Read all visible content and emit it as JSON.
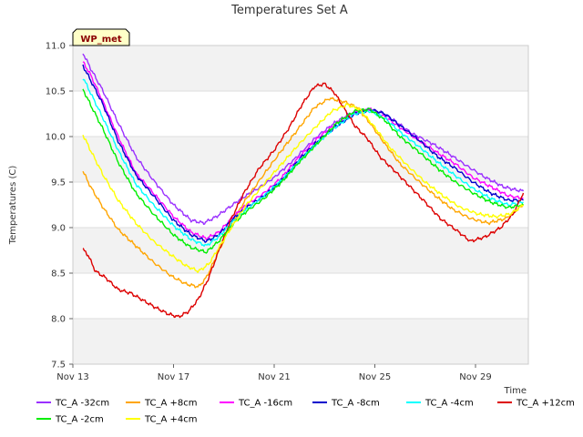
{
  "chart_data": {
    "type": "line",
    "title": "Temperatures Set A",
    "xlabel": "Time",
    "ylabel": "Temperatures (C)",
    "badge": "WP_met",
    "xlim": [
      13,
      31.1
    ],
    "ylim": [
      7.5,
      11.0
    ],
    "xticks": [
      {
        "value": 13,
        "label": "Nov 13"
      },
      {
        "value": 17,
        "label": "Nov 17"
      },
      {
        "value": 21,
        "label": "Nov 21"
      },
      {
        "value": 25,
        "label": "Nov 25"
      },
      {
        "value": 29,
        "label": "Nov 29"
      }
    ],
    "yticks": [
      7.5,
      8.0,
      8.5,
      9.0,
      9.5,
      10.0,
      10.5,
      11.0
    ],
    "grid": true,
    "legend_position": "bottom",
    "series": [
      {
        "name": "TC_A -32cm",
        "color": "#9b30ff",
        "points": [
          [
            13.4,
            10.92
          ],
          [
            13.7,
            10.75
          ],
          [
            14.2,
            10.5
          ],
          [
            14.8,
            10.15
          ],
          [
            15.5,
            9.78
          ],
          [
            16.2,
            9.52
          ],
          [
            17.0,
            9.25
          ],
          [
            17.7,
            9.08
          ],
          [
            18.2,
            9.05
          ],
          [
            18.7,
            9.12
          ],
          [
            19.2,
            9.22
          ],
          [
            19.7,
            9.32
          ],
          [
            20.3,
            9.42
          ],
          [
            21.0,
            9.55
          ],
          [
            21.8,
            9.75
          ],
          [
            22.7,
            10.0
          ],
          [
            23.4,
            10.15
          ],
          [
            24.0,
            10.25
          ],
          [
            24.6,
            10.3
          ],
          [
            25.2,
            10.27
          ],
          [
            25.8,
            10.17
          ],
          [
            26.5,
            10.03
          ],
          [
            27.3,
            9.92
          ],
          [
            28.0,
            9.8
          ],
          [
            28.7,
            9.67
          ],
          [
            29.4,
            9.55
          ],
          [
            30.1,
            9.45
          ],
          [
            30.5,
            9.42
          ],
          [
            30.9,
            9.4
          ]
        ]
      },
      {
        "name": "TC_A +8cm",
        "color": "#ffa500",
        "points": [
          [
            13.4,
            9.62
          ],
          [
            13.7,
            9.45
          ],
          [
            14.2,
            9.22
          ],
          [
            14.8,
            8.98
          ],
          [
            15.5,
            8.8
          ],
          [
            16.2,
            8.62
          ],
          [
            16.9,
            8.47
          ],
          [
            17.5,
            8.38
          ],
          [
            18.0,
            8.35
          ],
          [
            18.3,
            8.45
          ],
          [
            18.7,
            8.68
          ],
          [
            19.2,
            8.98
          ],
          [
            19.8,
            9.28
          ],
          [
            20.5,
            9.55
          ],
          [
            21.3,
            9.85
          ],
          [
            22.0,
            10.1
          ],
          [
            22.6,
            10.32
          ],
          [
            23.2,
            10.42
          ],
          [
            23.8,
            10.38
          ],
          [
            24.3,
            10.32
          ],
          [
            24.8,
            10.15
          ],
          [
            25.4,
            9.92
          ],
          [
            26.0,
            9.7
          ],
          [
            26.7,
            9.52
          ],
          [
            27.4,
            9.35
          ],
          [
            28.1,
            9.2
          ],
          [
            28.8,
            9.1
          ],
          [
            29.5,
            9.05
          ],
          [
            30.2,
            9.1
          ],
          [
            30.9,
            9.25
          ]
        ]
      },
      {
        "name": "TC_A -16cm",
        "color": "#ff00ff",
        "points": [
          [
            13.4,
            10.82
          ],
          [
            13.7,
            10.68
          ],
          [
            14.2,
            10.38
          ],
          [
            14.8,
            10.0
          ],
          [
            15.5,
            9.6
          ],
          [
            16.2,
            9.38
          ],
          [
            17.0,
            9.12
          ],
          [
            17.7,
            8.95
          ],
          [
            18.3,
            8.88
          ],
          [
            18.8,
            8.95
          ],
          [
            19.3,
            9.1
          ],
          [
            19.9,
            9.25
          ],
          [
            20.6,
            9.38
          ],
          [
            21.3,
            9.55
          ],
          [
            22.0,
            9.78
          ],
          [
            22.8,
            10.0
          ],
          [
            23.5,
            10.15
          ],
          [
            24.2,
            10.26
          ],
          [
            24.8,
            10.3
          ],
          [
            25.4,
            10.22
          ],
          [
            26.0,
            10.1
          ],
          [
            26.8,
            9.95
          ],
          [
            27.5,
            9.82
          ],
          [
            28.2,
            9.7
          ],
          [
            28.9,
            9.55
          ],
          [
            29.6,
            9.45
          ],
          [
            30.3,
            9.35
          ],
          [
            30.9,
            9.32
          ]
        ]
      },
      {
        "name": "TC_A -8cm",
        "color": "#0000cc",
        "points": [
          [
            13.4,
            10.78
          ],
          [
            13.7,
            10.62
          ],
          [
            14.2,
            10.35
          ],
          [
            14.8,
            9.95
          ],
          [
            15.5,
            9.58
          ],
          [
            16.2,
            9.35
          ],
          [
            17.0,
            9.08
          ],
          [
            17.7,
            8.92
          ],
          [
            18.3,
            8.85
          ],
          [
            18.8,
            8.92
          ],
          [
            19.3,
            9.08
          ],
          [
            19.9,
            9.22
          ],
          [
            20.6,
            9.35
          ],
          [
            21.3,
            9.52
          ],
          [
            22.0,
            9.75
          ],
          [
            22.8,
            9.97
          ],
          [
            23.5,
            10.12
          ],
          [
            24.2,
            10.25
          ],
          [
            24.8,
            10.3
          ],
          [
            25.4,
            10.25
          ],
          [
            26.0,
            10.12
          ],
          [
            26.8,
            9.95
          ],
          [
            27.5,
            9.78
          ],
          [
            28.2,
            9.65
          ],
          [
            28.9,
            9.5
          ],
          [
            29.6,
            9.38
          ],
          [
            30.3,
            9.3
          ],
          [
            30.9,
            9.3
          ]
        ]
      },
      {
        "name": "TC_A -4cm",
        "color": "#00ffff",
        "points": [
          [
            13.4,
            10.65
          ],
          [
            13.7,
            10.48
          ],
          [
            14.2,
            10.2
          ],
          [
            14.8,
            9.85
          ],
          [
            15.5,
            9.48
          ],
          [
            16.2,
            9.25
          ],
          [
            17.0,
            9.02
          ],
          [
            17.7,
            8.87
          ],
          [
            18.3,
            8.8
          ],
          [
            18.8,
            8.9
          ],
          [
            19.3,
            9.05
          ],
          [
            19.9,
            9.2
          ],
          [
            20.6,
            9.35
          ],
          [
            21.3,
            9.52
          ],
          [
            22.0,
            9.73
          ],
          [
            22.8,
            9.95
          ],
          [
            23.5,
            10.12
          ],
          [
            24.2,
            10.25
          ],
          [
            24.8,
            10.28
          ],
          [
            25.4,
            10.2
          ],
          [
            26.0,
            10.05
          ],
          [
            26.8,
            9.88
          ],
          [
            27.5,
            9.72
          ],
          [
            28.2,
            9.57
          ],
          [
            28.9,
            9.43
          ],
          [
            29.6,
            9.32
          ],
          [
            30.3,
            9.25
          ],
          [
            30.9,
            9.28
          ]
        ]
      },
      {
        "name": "TC_A +12cm",
        "color": "#dd0000",
        "points": [
          [
            13.4,
            8.76
          ],
          [
            13.6,
            8.7
          ],
          [
            13.9,
            8.52
          ],
          [
            14.3,
            8.45
          ],
          [
            14.8,
            8.32
          ],
          [
            15.3,
            8.28
          ],
          [
            15.8,
            8.2
          ],
          [
            16.3,
            8.12
          ],
          [
            16.8,
            8.05
          ],
          [
            17.2,
            8.02
          ],
          [
            17.6,
            8.08
          ],
          [
            18.0,
            8.22
          ],
          [
            18.4,
            8.45
          ],
          [
            18.8,
            8.75
          ],
          [
            19.3,
            9.1
          ],
          [
            19.8,
            9.38
          ],
          [
            20.4,
            9.65
          ],
          [
            21.0,
            9.85
          ],
          [
            21.6,
            10.1
          ],
          [
            22.1,
            10.35
          ],
          [
            22.6,
            10.55
          ],
          [
            23.0,
            10.58
          ],
          [
            23.4,
            10.48
          ],
          [
            23.8,
            10.3
          ],
          [
            24.2,
            10.12
          ],
          [
            24.7,
            9.98
          ],
          [
            25.2,
            9.78
          ],
          [
            25.8,
            9.62
          ],
          [
            26.4,
            9.45
          ],
          [
            27.0,
            9.28
          ],
          [
            27.6,
            9.1
          ],
          [
            28.2,
            8.98
          ],
          [
            28.8,
            8.85
          ],
          [
            29.4,
            8.9
          ],
          [
            30.0,
            9.0
          ],
          [
            30.5,
            9.15
          ],
          [
            30.9,
            9.38
          ]
        ]
      },
      {
        "name": "TC_A -2cm",
        "color": "#00ee00",
        "points": [
          [
            13.4,
            10.52
          ],
          [
            13.7,
            10.35
          ],
          [
            14.2,
            10.08
          ],
          [
            14.8,
            9.72
          ],
          [
            15.5,
            9.38
          ],
          [
            16.2,
            9.15
          ],
          [
            17.0,
            8.92
          ],
          [
            17.7,
            8.78
          ],
          [
            18.3,
            8.73
          ],
          [
            18.8,
            8.85
          ],
          [
            19.3,
            9.02
          ],
          [
            19.9,
            9.18
          ],
          [
            20.6,
            9.32
          ],
          [
            21.3,
            9.5
          ],
          [
            22.0,
            9.72
          ],
          [
            22.8,
            9.95
          ],
          [
            23.5,
            10.15
          ],
          [
            24.2,
            10.28
          ],
          [
            24.8,
            10.3
          ],
          [
            25.4,
            10.18
          ],
          [
            26.0,
            10.0
          ],
          [
            26.8,
            9.82
          ],
          [
            27.5,
            9.65
          ],
          [
            28.2,
            9.5
          ],
          [
            28.9,
            9.38
          ],
          [
            29.6,
            9.28
          ],
          [
            30.3,
            9.22
          ],
          [
            30.9,
            9.25
          ]
        ]
      },
      {
        "name": "TC_A +4cm",
        "color": "#ffff00",
        "points": [
          [
            13.4,
            10.02
          ],
          [
            13.7,
            9.85
          ],
          [
            14.2,
            9.58
          ],
          [
            14.8,
            9.3
          ],
          [
            15.5,
            9.05
          ],
          [
            16.2,
            8.85
          ],
          [
            16.9,
            8.7
          ],
          [
            17.5,
            8.58
          ],
          [
            18.0,
            8.52
          ],
          [
            18.4,
            8.6
          ],
          [
            18.8,
            8.78
          ],
          [
            19.3,
            9.0
          ],
          [
            19.9,
            9.25
          ],
          [
            20.6,
            9.48
          ],
          [
            21.3,
            9.7
          ],
          [
            22.0,
            9.92
          ],
          [
            22.7,
            10.12
          ],
          [
            23.3,
            10.28
          ],
          [
            23.9,
            10.35
          ],
          [
            24.4,
            10.3
          ],
          [
            25.0,
            10.1
          ],
          [
            25.6,
            9.88
          ],
          [
            26.3,
            9.68
          ],
          [
            27.0,
            9.5
          ],
          [
            27.7,
            9.35
          ],
          [
            28.4,
            9.22
          ],
          [
            29.1,
            9.15
          ],
          [
            29.8,
            9.12
          ],
          [
            30.4,
            9.15
          ],
          [
            30.9,
            9.25
          ]
        ]
      }
    ]
  }
}
